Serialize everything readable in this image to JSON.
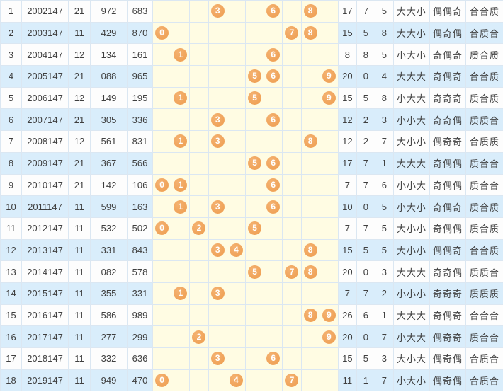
{
  "chart_data": {
    "type": "table",
    "title": "",
    "ball_columns": [
      0,
      1,
      2,
      3,
      4,
      5,
      6,
      7,
      8,
      9
    ],
    "colors": {
      "ball_orange": "#f0a156",
      "row_even_blue": "#d9edfb",
      "row_odd_white": "#fdfdfd",
      "ball_grid_cream": "#fffce3",
      "grid_line_blue": "#c9dcee",
      "cell_line": "#dbe7f2",
      "text": "#3f3f3f"
    },
    "rows": [
      {
        "idx": "1",
        "period": "2002147",
        "test": "21",
        "num1": "972",
        "num2": "683",
        "balls": [
          3,
          6,
          8
        ],
        "sum": "17",
        "tail": "7",
        "span": "5",
        "size": "大大小",
        "parity": "偶偶奇",
        "prime": "合合质"
      },
      {
        "idx": "2",
        "period": "2003147",
        "test": "11",
        "num1": "429",
        "num2": "870",
        "balls": [
          0,
          7,
          8
        ],
        "sum": "15",
        "tail": "5",
        "span": "8",
        "size": "大大小",
        "parity": "偶奇偶",
        "prime": "合质合"
      },
      {
        "idx": "3",
        "period": "2004147",
        "test": "12",
        "num1": "134",
        "num2": "161",
        "balls": [
          1,
          6
        ],
        "sum": "8",
        "tail": "8",
        "span": "5",
        "size": "小大小",
        "parity": "奇偶奇",
        "prime": "质合质"
      },
      {
        "idx": "4",
        "period": "2005147",
        "test": "21",
        "num1": "088",
        "num2": "965",
        "balls": [
          5,
          6,
          9
        ],
        "sum": "20",
        "tail": "0",
        "span": "4",
        "size": "大大大",
        "parity": "奇偶奇",
        "prime": "合合质"
      },
      {
        "idx": "5",
        "period": "2006147",
        "test": "12",
        "num1": "149",
        "num2": "195",
        "balls": [
          1,
          5,
          9
        ],
        "sum": "15",
        "tail": "5",
        "span": "8",
        "size": "小大大",
        "parity": "奇奇奇",
        "prime": "质合质"
      },
      {
        "idx": "6",
        "period": "2007147",
        "test": "21",
        "num1": "305",
        "num2": "336",
        "balls": [
          3,
          6
        ],
        "sum": "12",
        "tail": "2",
        "span": "3",
        "size": "小小大",
        "parity": "奇奇偶",
        "prime": "质质合"
      },
      {
        "idx": "7",
        "period": "2008147",
        "test": "12",
        "num1": "561",
        "num2": "831",
        "balls": [
          1,
          3,
          8
        ],
        "sum": "12",
        "tail": "2",
        "span": "7",
        "size": "大小小",
        "parity": "偶奇奇",
        "prime": "合质质"
      },
      {
        "idx": "8",
        "period": "2009147",
        "test": "21",
        "num1": "367",
        "num2": "566",
        "balls": [
          5,
          6
        ],
        "sum": "17",
        "tail": "7",
        "span": "1",
        "size": "大大大",
        "parity": "奇偶偶",
        "prime": "质合合"
      },
      {
        "idx": "9",
        "period": "2010147",
        "test": "21",
        "num1": "142",
        "num2": "106",
        "balls": [
          0,
          1,
          6
        ],
        "sum": "7",
        "tail": "7",
        "span": "6",
        "size": "小小大",
        "parity": "奇偶偶",
        "prime": "质合合"
      },
      {
        "idx": "10",
        "period": "2011147",
        "test": "11",
        "num1": "599",
        "num2": "163",
        "balls": [
          1,
          3,
          6
        ],
        "sum": "10",
        "tail": "0",
        "span": "5",
        "size": "小大小",
        "parity": "奇偶奇",
        "prime": "质合质"
      },
      {
        "idx": "11",
        "period": "2012147",
        "test": "11",
        "num1": "532",
        "num2": "502",
        "balls": [
          0,
          2,
          5
        ],
        "sum": "7",
        "tail": "7",
        "span": "5",
        "size": "大小小",
        "parity": "奇偶偶",
        "prime": "质合质"
      },
      {
        "idx": "12",
        "period": "2013147",
        "test": "11",
        "num1": "331",
        "num2": "843",
        "balls": [
          3,
          4,
          8
        ],
        "sum": "15",
        "tail": "5",
        "span": "5",
        "size": "大小小",
        "parity": "偶偶奇",
        "prime": "合合质"
      },
      {
        "idx": "13",
        "period": "2014147",
        "test": "11",
        "num1": "082",
        "num2": "578",
        "balls": [
          5,
          7,
          8
        ],
        "sum": "20",
        "tail": "0",
        "span": "3",
        "size": "大大大",
        "parity": "奇奇偶",
        "prime": "质质合"
      },
      {
        "idx": "14",
        "period": "2015147",
        "test": "11",
        "num1": "355",
        "num2": "331",
        "balls": [
          1,
          3
        ],
        "sum": "7",
        "tail": "7",
        "span": "2",
        "size": "小小小",
        "parity": "奇奇奇",
        "prime": "质质质"
      },
      {
        "idx": "15",
        "period": "2016147",
        "test": "11",
        "num1": "586",
        "num2": "989",
        "balls": [
          8,
          9
        ],
        "sum": "26",
        "tail": "6",
        "span": "1",
        "size": "大大大",
        "parity": "奇偶奇",
        "prime": "合合合"
      },
      {
        "idx": "16",
        "period": "2017147",
        "test": "11",
        "num1": "277",
        "num2": "299",
        "balls": [
          2,
          9
        ],
        "sum": "20",
        "tail": "0",
        "span": "7",
        "size": "小大大",
        "parity": "偶奇奇",
        "prime": "质合合"
      },
      {
        "idx": "17",
        "period": "2018147",
        "test": "11",
        "num1": "332",
        "num2": "636",
        "balls": [
          3,
          6
        ],
        "sum": "15",
        "tail": "5",
        "span": "3",
        "size": "大小大",
        "parity": "偶奇偶",
        "prime": "合质合"
      },
      {
        "idx": "18",
        "period": "2019147",
        "test": "11",
        "num1": "949",
        "num2": "470",
        "balls": [
          0,
          4,
          7
        ],
        "sum": "11",
        "tail": "1",
        "span": "7",
        "size": "小大小",
        "parity": "偶奇偶",
        "prime": "合质合"
      }
    ]
  }
}
